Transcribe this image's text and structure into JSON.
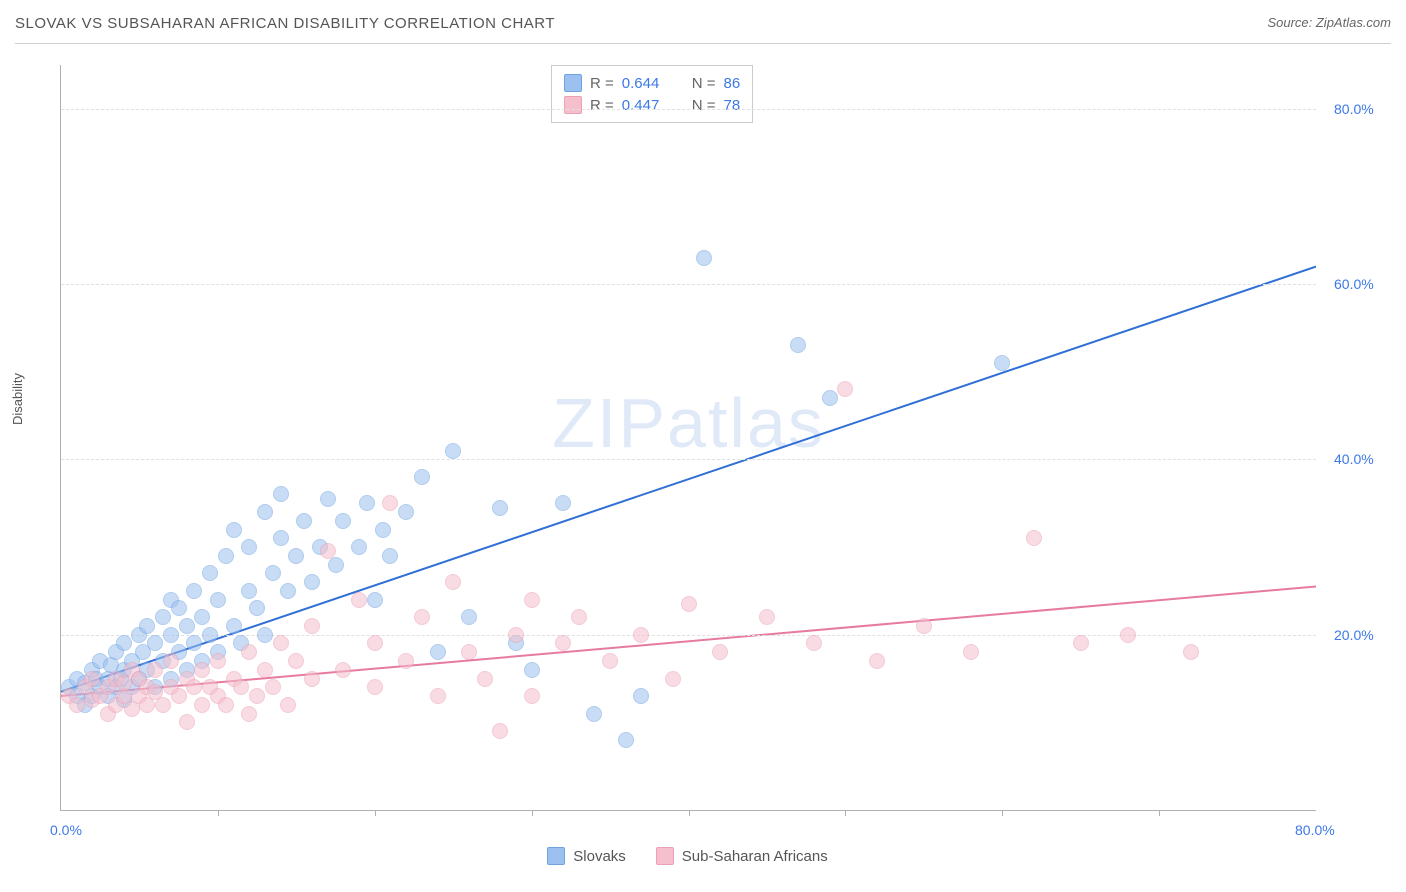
{
  "header": {
    "title": "SLOVAK VS SUBSAHARAN AFRICAN DISABILITY CORRELATION CHART",
    "source_prefix": "Source: ",
    "source_name": "ZipAtlas.com"
  },
  "ylabel": "Disability",
  "watermark": "ZIPatlas",
  "chart": {
    "type": "scatter",
    "xlim": [
      0,
      80
    ],
    "ylim": [
      0,
      85
    ],
    "x_tick_label_min": "0.0%",
    "x_tick_label_max": "80.0%",
    "x_minor_ticks": [
      10,
      20,
      30,
      40,
      50,
      60,
      70
    ],
    "y_gridlines": [
      20,
      40,
      60,
      80
    ],
    "y_tick_labels": {
      "20": "20.0%",
      "40": "40.0%",
      "60": "60.0%",
      "80": "80.0%"
    },
    "background_color": "#ffffff",
    "grid_color": "#e0e0e0",
    "axis_color": "#b0b0b0",
    "tick_label_color": "#3b78e7",
    "marker_radius": 7,
    "marker_opacity": 0.55,
    "series": [
      {
        "key": "slovaks",
        "label": "Slovaks",
        "color": "#9cc1f0",
        "border": "#6fa3e0",
        "line_color": "#2f6fd6",
        "line_width": 2,
        "R": "0.644",
        "N": "86",
        "trend": {
          "x1": 0,
          "y1": 13.5,
          "x2": 80,
          "y2": 62
        },
        "points": [
          [
            0.5,
            14
          ],
          [
            1,
            13
          ],
          [
            1,
            15
          ],
          [
            1.5,
            12
          ],
          [
            1.5,
            14.5
          ],
          [
            2,
            13
          ],
          [
            2,
            16
          ],
          [
            2.2,
            15
          ],
          [
            2.5,
            14
          ],
          [
            2.5,
            17
          ],
          [
            3,
            13
          ],
          [
            3,
            15
          ],
          [
            3.2,
            16.5
          ],
          [
            3.5,
            14
          ],
          [
            3.5,
            18
          ],
          [
            3.8,
            15
          ],
          [
            4,
            12.5
          ],
          [
            4,
            16
          ],
          [
            4,
            19
          ],
          [
            4.5,
            14
          ],
          [
            4.5,
            17
          ],
          [
            5,
            15
          ],
          [
            5,
            20
          ],
          [
            5.2,
            18
          ],
          [
            5.5,
            16
          ],
          [
            5.5,
            21
          ],
          [
            6,
            14
          ],
          [
            6,
            19
          ],
          [
            6.5,
            17
          ],
          [
            6.5,
            22
          ],
          [
            7,
            15
          ],
          [
            7,
            20
          ],
          [
            7,
            24
          ],
          [
            7.5,
            18
          ],
          [
            7.5,
            23
          ],
          [
            8,
            16
          ],
          [
            8,
            21
          ],
          [
            8.5,
            19
          ],
          [
            8.5,
            25
          ],
          [
            9,
            17
          ],
          [
            9,
            22
          ],
          [
            9.5,
            20
          ],
          [
            9.5,
            27
          ],
          [
            10,
            18
          ],
          [
            10,
            24
          ],
          [
            10.5,
            29
          ],
          [
            11,
            21
          ],
          [
            11,
            32
          ],
          [
            11.5,
            19
          ],
          [
            12,
            25
          ],
          [
            12,
            30
          ],
          [
            12.5,
            23
          ],
          [
            13,
            34
          ],
          [
            13,
            20
          ],
          [
            13.5,
            27
          ],
          [
            14,
            31
          ],
          [
            14,
            36
          ],
          [
            14.5,
            25
          ],
          [
            15,
            29
          ],
          [
            15.5,
            33
          ],
          [
            16,
            26
          ],
          [
            16.5,
            30
          ],
          [
            17,
            35.5
          ],
          [
            17.5,
            28
          ],
          [
            18,
            33
          ],
          [
            19,
            30
          ],
          [
            19.5,
            35
          ],
          [
            20,
            24
          ],
          [
            20.5,
            32
          ],
          [
            21,
            29
          ],
          [
            22,
            34
          ],
          [
            23,
            38
          ],
          [
            24,
            18
          ],
          [
            25,
            41
          ],
          [
            26,
            22
          ],
          [
            28,
            34.5
          ],
          [
            29,
            19
          ],
          [
            30,
            16
          ],
          [
            32,
            35
          ],
          [
            34,
            11
          ],
          [
            36,
            8
          ],
          [
            37,
            13
          ],
          [
            41,
            63
          ],
          [
            47,
            53
          ],
          [
            49,
            47
          ],
          [
            60,
            51
          ]
        ]
      },
      {
        "key": "ssa",
        "label": "Sub-Saharan Africans",
        "color": "#f5bfcd",
        "border": "#eba0b4",
        "line_color": "#e77aa0",
        "line_width": 2,
        "R": "0.447",
        "N": "78",
        "trend": {
          "x1": 0,
          "y1": 13,
          "x2": 80,
          "y2": 25.5
        },
        "points": [
          [
            0.5,
            13
          ],
          [
            1,
            12
          ],
          [
            1.5,
            14
          ],
          [
            2,
            12.5
          ],
          [
            2,
            15
          ],
          [
            2.5,
            13
          ],
          [
            3,
            11
          ],
          [
            3,
            14
          ],
          [
            3.5,
            12
          ],
          [
            3.5,
            15
          ],
          [
            4,
            13
          ],
          [
            4,
            14.5
          ],
          [
            4.5,
            11.5
          ],
          [
            4.5,
            16
          ],
          [
            5,
            13
          ],
          [
            5,
            15
          ],
          [
            5.5,
            12
          ],
          [
            5.5,
            14
          ],
          [
            6,
            13.5
          ],
          [
            6,
            16
          ],
          [
            6.5,
            12
          ],
          [
            7,
            14
          ],
          [
            7,
            17
          ],
          [
            7.5,
            13
          ],
          [
            8,
            15
          ],
          [
            8,
            10
          ],
          [
            8.5,
            14
          ],
          [
            9,
            12
          ],
          [
            9,
            16
          ],
          [
            9.5,
            14
          ],
          [
            10,
            13
          ],
          [
            10,
            17
          ],
          [
            10.5,
            12
          ],
          [
            11,
            15
          ],
          [
            11.5,
            14
          ],
          [
            12,
            11
          ],
          [
            12,
            18
          ],
          [
            12.5,
            13
          ],
          [
            13,
            16
          ],
          [
            13.5,
            14
          ],
          [
            14,
            19
          ],
          [
            14.5,
            12
          ],
          [
            15,
            17
          ],
          [
            16,
            15
          ],
          [
            16,
            21
          ],
          [
            17,
            29.5
          ],
          [
            18,
            16
          ],
          [
            19,
            24
          ],
          [
            20,
            14
          ],
          [
            20,
            19
          ],
          [
            21,
            35
          ],
          [
            22,
            17
          ],
          [
            23,
            22
          ],
          [
            24,
            13
          ],
          [
            25,
            26
          ],
          [
            26,
            18
          ],
          [
            27,
            15
          ],
          [
            28,
            9
          ],
          [
            29,
            20
          ],
          [
            30,
            24
          ],
          [
            30,
            13
          ],
          [
            32,
            19
          ],
          [
            33,
            22
          ],
          [
            35,
            17
          ],
          [
            37,
            20
          ],
          [
            39,
            15
          ],
          [
            40,
            23.5
          ],
          [
            42,
            18
          ],
          [
            45,
            22
          ],
          [
            48,
            19
          ],
          [
            50,
            48
          ],
          [
            52,
            17
          ],
          [
            55,
            21
          ],
          [
            58,
            18
          ],
          [
            62,
            31
          ],
          [
            65,
            19
          ],
          [
            68,
            20
          ],
          [
            72,
            18
          ]
        ]
      }
    ]
  }
}
